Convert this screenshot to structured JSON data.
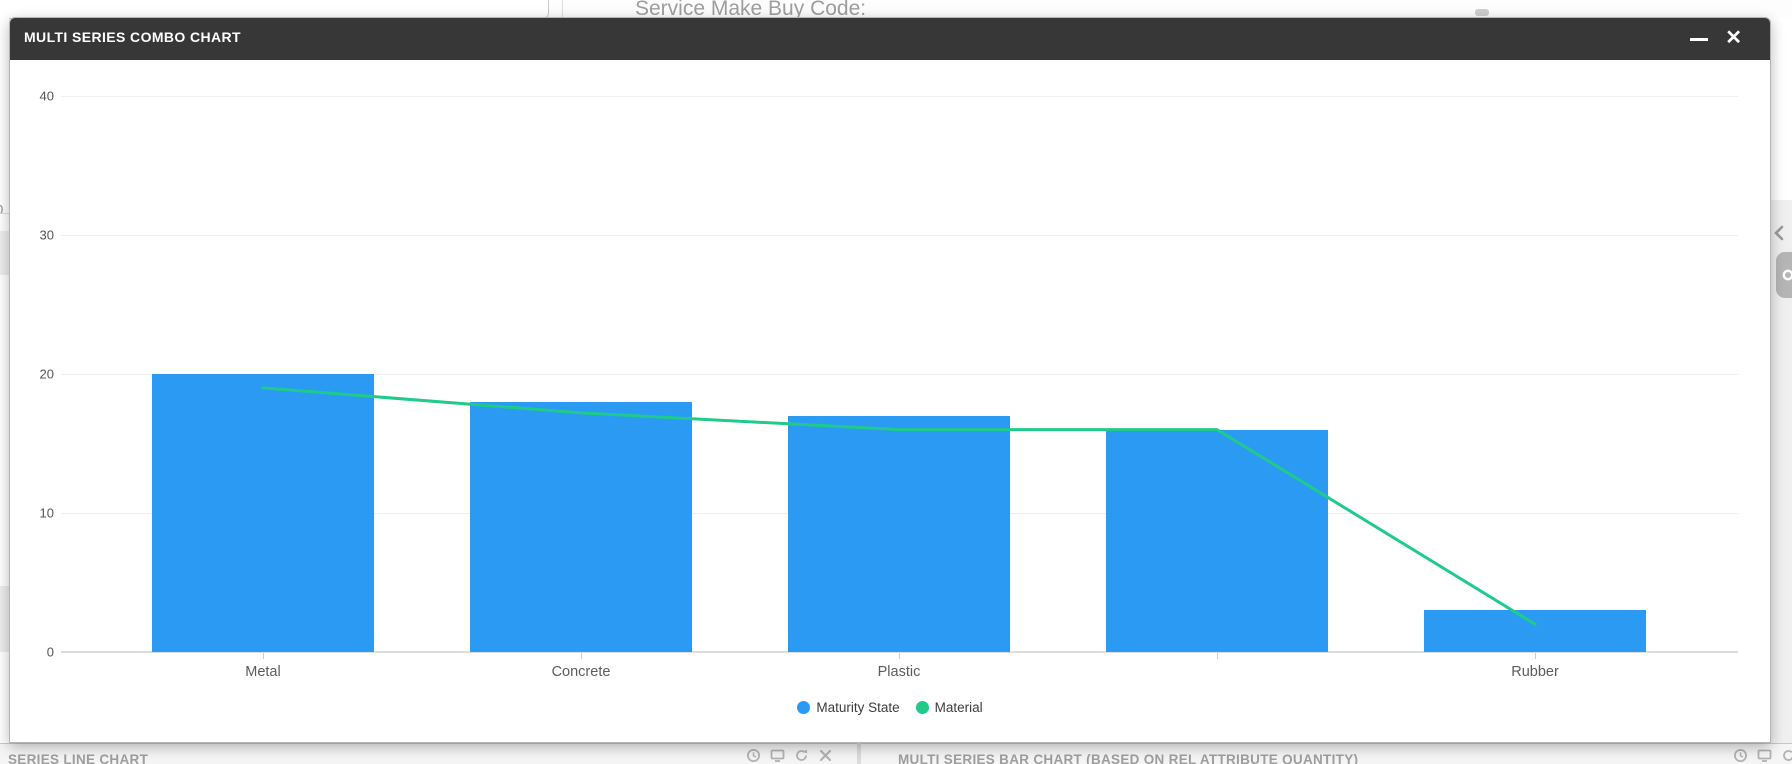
{
  "background": {
    "top_bar": {
      "field_label": "Service Make Buy Code:"
    },
    "left_edge": {
      "clipped_axis_label": "0"
    },
    "bottom_panels": [
      {
        "title": "SERIES LINE CHART",
        "icons": [
          "clock-icon",
          "monitor-icon",
          "refresh-icon",
          "close-icon"
        ]
      },
      {
        "title": "MULTI SERIES BAR CHART (BASED ON REL ATTRIBUTE QUANTITY)",
        "icons": [
          "clock-icon",
          "monitor-icon",
          "refresh-icon",
          "close-icon"
        ]
      }
    ],
    "right_edge": {
      "chevron": "collapse-left",
      "gear_button": "settings"
    }
  },
  "modal": {
    "title": "MULTI SERIES COMBO CHART",
    "header_color": "#373737",
    "controls": {
      "minimize": "minimize",
      "close": "close"
    }
  },
  "chart_data": {
    "type": "combo",
    "categories": [
      "Metal",
      "Concrete",
      "Plastic",
      "",
      "Rubber"
    ],
    "series": [
      {
        "name": "Maturity State",
        "type": "bar",
        "color": "#2b9af3",
        "values": [
          20,
          18,
          17,
          16,
          3
        ]
      },
      {
        "name": "Material",
        "type": "line",
        "color": "#1fcb8a",
        "values": [
          19,
          17.2,
          16,
          16,
          2
        ]
      }
    ],
    "title": "",
    "xlabel": "",
    "ylabel": "",
    "ylim": [
      0,
      40
    ],
    "yticks": [
      0,
      10,
      20,
      30,
      40
    ],
    "grid": true,
    "legend_position": "bottom"
  }
}
